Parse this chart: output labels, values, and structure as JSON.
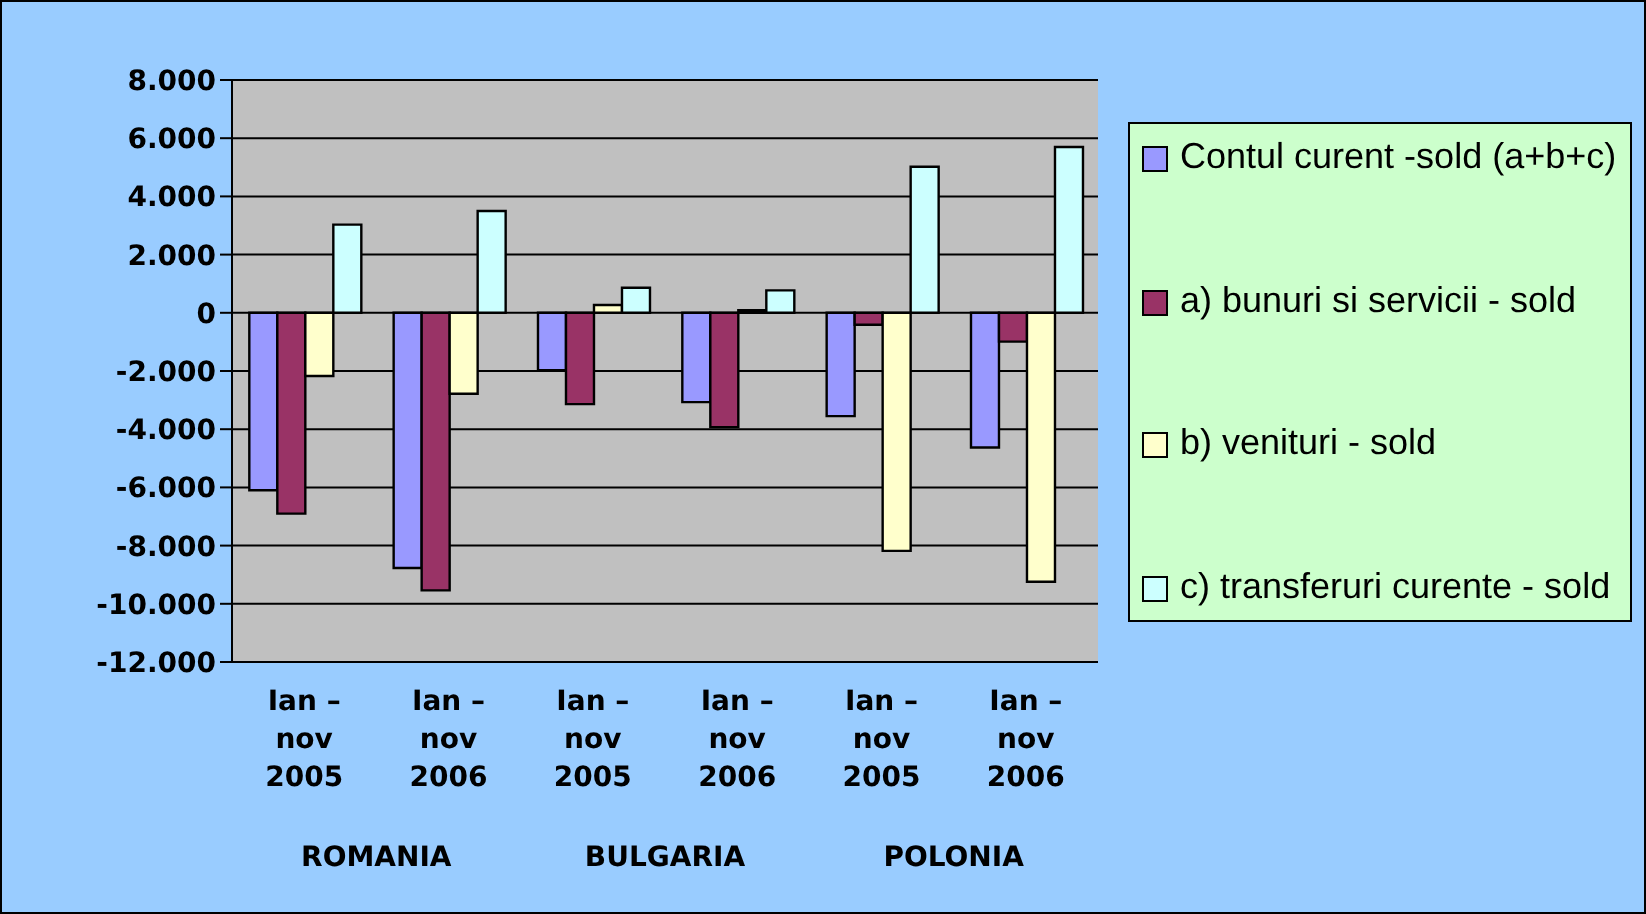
{
  "chart_data": {
    "type": "bar",
    "categories": [
      "Ian – nov 2005",
      "Ian – nov 2006",
      "Ian – nov 2005",
      "Ian – nov 2006",
      "Ian – nov 2005",
      "Ian – nov 2006"
    ],
    "annotations": [
      "ROMANIA",
      "BULGARIA",
      "POLONIA"
    ],
    "series": [
      {
        "name": "Contul curent -sold (a+b+c)",
        "color": "#9999ff",
        "values": [
          -6100,
          -8770,
          -1970,
          -3070,
          -3550,
          -4630
        ]
      },
      {
        "name": "a) bunuri si servicii - sold",
        "color": "#993366",
        "values": [
          -6900,
          -9540,
          -3140,
          -3930,
          -410,
          -990
        ]
      },
      {
        "name": "b) venituri - sold",
        "color": "#ffffcc",
        "values": [
          -2170,
          -2780,
          270,
          90,
          -8180,
          -9240
        ]
      },
      {
        "name": "c) transferuri curente - sold",
        "color": "#ccffff",
        "values": [
          3030,
          3500,
          860,
          770,
          5020,
          5700
        ]
      }
    ],
    "ylim": [
      -12000,
      8000
    ],
    "yticks": [
      {
        "value": 8000,
        "label": "8.000"
      },
      {
        "value": 6000,
        "label": "6.000"
      },
      {
        "value": 4000,
        "label": "4.000"
      },
      {
        "value": 2000,
        "label": "2.000"
      },
      0,
      {
        "value": -2000,
        "label": "-2.000"
      },
      {
        "value": -4000,
        "label": "-4.000"
      },
      {
        "value": -6000,
        "label": "-6.000"
      },
      {
        "value": -8000,
        "label": "-8.000"
      },
      {
        "value": -10000,
        "label": "-10.000"
      },
      {
        "value": -12000,
        "label": "-12.000"
      }
    ],
    "grid": "y",
    "legend": "right"
  }
}
